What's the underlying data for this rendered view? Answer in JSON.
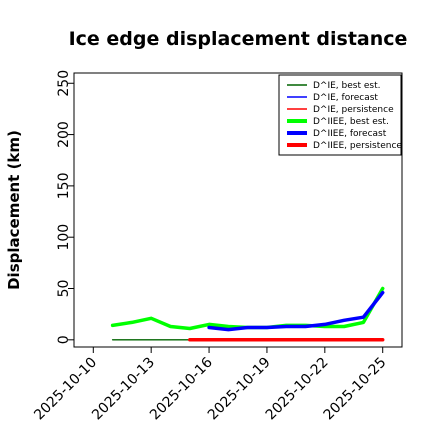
{
  "chart_data": {
    "type": "line",
    "title": "Ice edge displacement distance",
    "xlabel": "",
    "ylabel": "Displacement (km)",
    "xlim": [
      "2025-10-09",
      "2025-10-26"
    ],
    "ylim": [
      -7,
      260
    ],
    "y_ticks": [
      0,
      50,
      100,
      150,
      200,
      250
    ],
    "x_ticks": [
      "2025-10-10",
      "2025-10-13",
      "2025-10-16",
      "2025-10-19",
      "2025-10-22",
      "2025-10-25"
    ],
    "highlighted_x_tick": "2025-10-16",
    "highlight_color": "#228B22",
    "grid": false,
    "legend_position": "top-right",
    "series": [
      {
        "name": "D^IE, best est.",
        "color": "#006400",
        "width": "thin",
        "x": [
          "2025-10-11",
          "2025-10-12",
          "2025-10-13",
          "2025-10-14",
          "2025-10-15"
        ],
        "y": [
          0,
          0,
          0,
          0,
          0
        ]
      },
      {
        "name": "D^IE, forecast",
        "color": "#0000ff",
        "width": "thin",
        "x": [],
        "y": []
      },
      {
        "name": "D^IE, persistence",
        "color": "#ff0000",
        "width": "thin",
        "x": [],
        "y": []
      },
      {
        "name": "D^IIEE, best est.",
        "color": "#00ff00",
        "width": "thick",
        "x": [
          "2025-10-11",
          "2025-10-12",
          "2025-10-13",
          "2025-10-14",
          "2025-10-15",
          "2025-10-16",
          "2025-10-17",
          "2025-10-18",
          "2025-10-19",
          "2025-10-20",
          "2025-10-21",
          "2025-10-22",
          "2025-10-23",
          "2025-10-24",
          "2025-10-25"
        ],
        "y": [
          14,
          17,
          21,
          13,
          11,
          15,
          13,
          12,
          12,
          14,
          14,
          13,
          13,
          17,
          50
        ]
      },
      {
        "name": "D^IIEE, forecast",
        "color": "#0000ff",
        "width": "thick",
        "x": [
          "2025-10-16",
          "2025-10-17",
          "2025-10-18",
          "2025-10-19",
          "2025-10-20",
          "2025-10-21",
          "2025-10-22",
          "2025-10-23",
          "2025-10-24",
          "2025-10-25"
        ],
        "y": [
          12,
          10,
          12,
          12,
          13,
          13,
          15,
          19,
          22,
          46
        ]
      },
      {
        "name": "D^IIEE, persistence",
        "color": "#ff0000",
        "width": "thick",
        "x": [
          "2025-10-15",
          "2025-10-25"
        ],
        "y": [
          0,
          0
        ]
      }
    ]
  }
}
